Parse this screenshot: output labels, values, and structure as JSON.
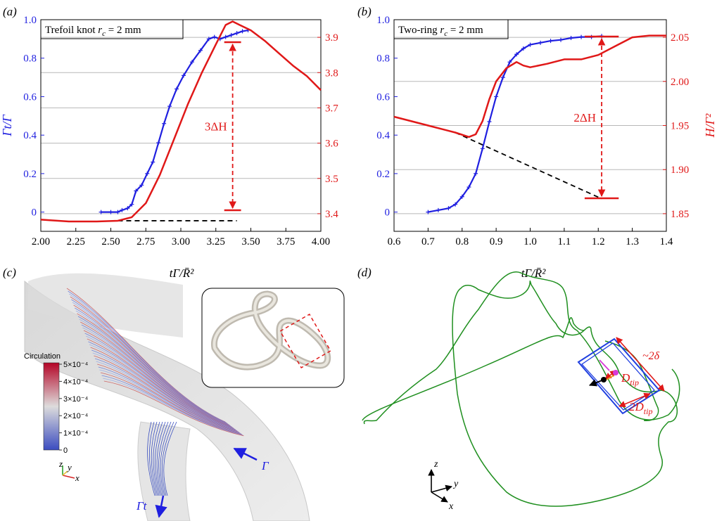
{
  "panels": {
    "a": {
      "letter": "(a)"
    },
    "b": {
      "letter": "(b)"
    },
    "c": {
      "letter": "(c)"
    },
    "d": {
      "letter": "(d)"
    }
  },
  "xlabel_main": "tΓ/R̄²",
  "colors": {
    "blue": "#1f1fe0",
    "red": "#e01818",
    "green": "#1f8f1f",
    "black": "#000000"
  },
  "chart_data": [
    {
      "type": "line",
      "panel": "a",
      "title": "Trefoil knot r_c = 2 mm",
      "xlabel": "tΓ/R̄²",
      "ylabel_left": "Γt/Γ",
      "ylabel_right": "",
      "xlim": [
        2.0,
        4.0
      ],
      "ylim_left": [
        -0.1,
        1.0
      ],
      "ylim_right": [
        3.35,
        3.95
      ],
      "xticks": [
        "2.00",
        "2.25",
        "2.50",
        "2.75",
        "3.00",
        "3.25",
        "3.50",
        "3.75",
        "4.00"
      ],
      "yticks_left": [
        "0",
        "0.2",
        "0.4",
        "0.6",
        "0.8",
        "1.0"
      ],
      "yticks_right": [
        "3.4",
        "3.5",
        "3.6",
        "3.7",
        "3.8",
        "3.9"
      ],
      "annotation": "3ΔH",
      "series": [
        {
          "axis": "left",
          "color": "blue",
          "x": [
            2.43,
            2.5,
            2.55,
            2.58,
            2.62,
            2.65,
            2.68,
            2.72,
            2.76,
            2.8,
            2.84,
            2.88,
            2.92,
            2.97,
            3.02,
            3.08,
            3.14,
            3.2,
            3.24,
            3.28,
            3.32,
            3.36,
            3.4,
            3.44,
            3.48
          ],
          "values": [
            0.0,
            0.0,
            0.0,
            0.01,
            0.02,
            0.04,
            0.11,
            0.14,
            0.2,
            0.26,
            0.36,
            0.46,
            0.55,
            0.64,
            0.71,
            0.78,
            0.84,
            0.9,
            0.91,
            0.9,
            0.91,
            0.92,
            0.93,
            0.94,
            0.945
          ]
        },
        {
          "axis": "right",
          "color": "red",
          "x": [
            2.0,
            2.2,
            2.4,
            2.55,
            2.65,
            2.75,
            2.85,
            2.95,
            3.05,
            3.15,
            3.25,
            3.32,
            3.37,
            3.42,
            3.5,
            3.6,
            3.7,
            3.8,
            3.9,
            4.0
          ],
          "values": [
            3.383,
            3.378,
            3.378,
            3.38,
            3.39,
            3.43,
            3.51,
            3.61,
            3.71,
            3.8,
            3.88,
            3.935,
            3.945,
            3.935,
            3.92,
            3.89,
            3.855,
            3.82,
            3.79,
            3.75
          ]
        }
      ],
      "baseline": {
        "x": [
          2.55,
          3.4
        ],
        "y": 3.38
      }
    },
    {
      "type": "line",
      "panel": "b",
      "title": "Two-ring r_c = 2 mm",
      "xlabel": "tΓ/R̄²",
      "ylabel_left": "",
      "ylabel_right": "H/Γ²",
      "xlim": [
        0.6,
        1.4
      ],
      "ylim_left": [
        -0.1,
        1.0
      ],
      "ylim_right": [
        1.83,
        2.07
      ],
      "xticks": [
        "0.6",
        "0.7",
        "0.8",
        "0.9",
        "1.0",
        "1.1",
        "1.2",
        "1.3",
        "1.4"
      ],
      "yticks_left": [
        "0",
        "0.2",
        "0.4",
        "0.6",
        "0.8",
        "1.0"
      ],
      "yticks_right": [
        "1.85",
        "1.90",
        "1.95",
        "2.00",
        "2.05"
      ],
      "annotation": "2ΔH",
      "series": [
        {
          "axis": "left",
          "color": "blue",
          "x": [
            0.7,
            0.73,
            0.76,
            0.78,
            0.8,
            0.82,
            0.84,
            0.86,
            0.88,
            0.9,
            0.92,
            0.94,
            0.96,
            0.98,
            1.0,
            1.03,
            1.06,
            1.09,
            1.12,
            1.15,
            1.18,
            1.21
          ],
          "values": [
            0.0,
            0.01,
            0.02,
            0.04,
            0.08,
            0.13,
            0.2,
            0.33,
            0.47,
            0.6,
            0.7,
            0.78,
            0.82,
            0.85,
            0.87,
            0.88,
            0.89,
            0.895,
            0.905,
            0.91,
            0.91,
            0.915
          ]
        },
        {
          "axis": "right",
          "color": "red",
          "x": [
            0.6,
            0.7,
            0.78,
            0.82,
            0.84,
            0.86,
            0.88,
            0.9,
            0.93,
            0.96,
            0.98,
            1.0,
            1.05,
            1.1,
            1.15,
            1.2,
            1.25,
            1.3,
            1.35,
            1.4
          ],
          "values": [
            1.96,
            1.95,
            1.942,
            1.937,
            1.94,
            1.955,
            1.98,
            2.0,
            2.015,
            2.022,
            2.018,
            2.016,
            2.02,
            2.025,
            2.025,
            2.03,
            2.04,
            2.05,
            2.052,
            2.052
          ]
        }
      ],
      "baseline": {
        "x": [
          0.78,
          1.21
        ],
        "y": [
          1.942,
          1.867
        ]
      }
    }
  ],
  "panel_c": {
    "colorbar_title": "Circulation",
    "colorbar_ticks": [
      "5×10⁻⁴",
      "4×10⁻⁴",
      "3×10⁻⁴",
      "2×10⁻⁴",
      "1×10⁻⁴",
      "0"
    ],
    "gamma_label": "Γ",
    "gamma_t_label": "Γt",
    "axes_labels": [
      "z",
      "y",
      "x"
    ]
  },
  "panel_d": {
    "label_2delta": "~2δ",
    "label_dtip": "D",
    "label_dtip_sub": "tip",
    "label_2dtip": "2D",
    "label_2dtip_sub": "tip",
    "axes_labels": [
      "z",
      "y",
      "x"
    ]
  }
}
